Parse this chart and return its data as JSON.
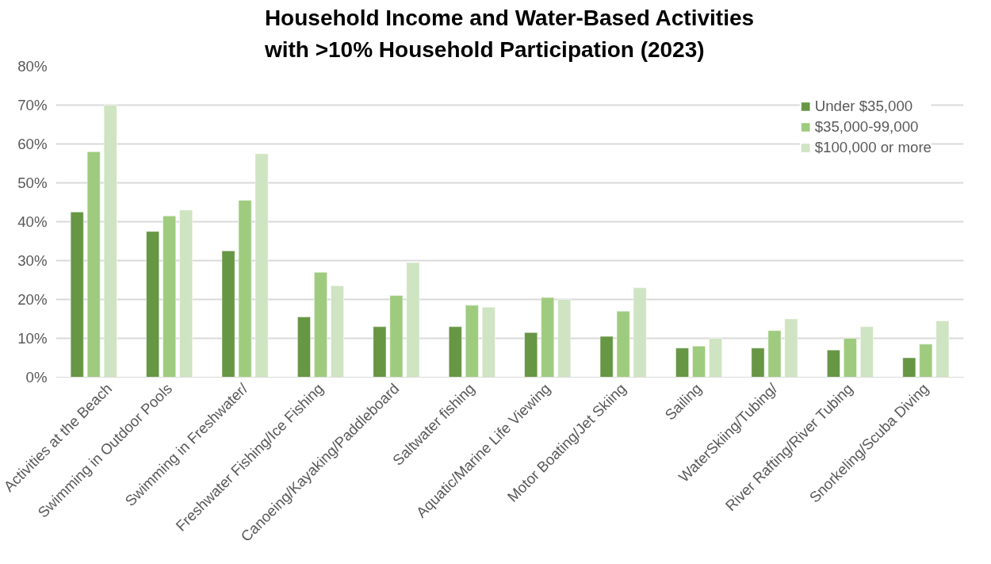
{
  "chart_data": {
    "type": "bar",
    "title": "Household Income and Water-Based Activities\nwith >10% Household Participation (2023)",
    "categories": [
      "Activities at the Beach",
      "Swimming in Outdoor Pools",
      "Swimming in Freshwater/",
      "Freshwater Fishing/Ice Fishing",
      "Canoeing/Kayaking/Paddleboard",
      "Saltwater fishing",
      "Aquatic/Marine Life Viewing",
      "Motor Boating/Jet Skiing",
      "Sailing",
      "WaterSkiing/Tubing/",
      "River Rafting/River Tubing",
      "Snorkeling/Scuba Diving"
    ],
    "series": [
      {
        "name": "Under $35,000",
        "color": "#679645",
        "values": [
          42.5,
          37.5,
          32.5,
          15.5,
          13,
          13,
          11.5,
          10.5,
          7.5,
          7.5,
          7,
          5
        ]
      },
      {
        "name": "$35,000-99,000",
        "color": "#9fcb7e",
        "values": [
          58,
          41.5,
          45.5,
          27,
          21,
          18.5,
          20.5,
          17,
          8,
          12,
          10,
          8.5
        ]
      },
      {
        "name": "$100,000 or more",
        "color": "#cfe4c2",
        "values": [
          70,
          43,
          57.5,
          23.5,
          29.5,
          18,
          20,
          23,
          10,
          15,
          13,
          14.5
        ]
      }
    ],
    "ylim": [
      0,
      80
    ],
    "yticks": [
      {
        "value": 0,
        "label": "0%"
      },
      {
        "value": 10,
        "label": "10%"
      },
      {
        "value": 20,
        "label": "20%"
      },
      {
        "value": 30,
        "label": "30%"
      },
      {
        "value": 40,
        "label": "40%"
      },
      {
        "value": 50,
        "label": "50%"
      },
      {
        "value": 60,
        "label": "60%"
      },
      {
        "value": 70,
        "label": "70%"
      },
      {
        "value": 80,
        "label": "80%"
      }
    ],
    "grid": "y",
    "legend": "top right"
  }
}
